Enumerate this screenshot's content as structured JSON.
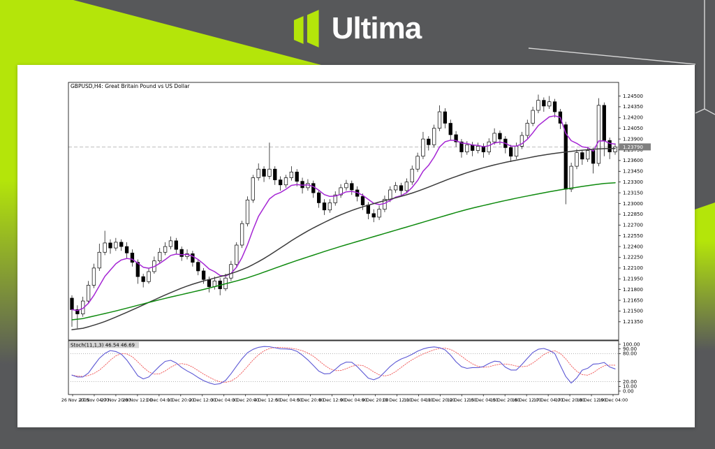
{
  "page": {
    "background_color": "#57585a",
    "accent_color": "#b4e50a",
    "chevron_line_color": "#d8d8d8"
  },
  "header": {
    "brand": "Ultima"
  },
  "chart": {
    "title": "GBPUSD,H4: Great Britain Pound vs US Dollar",
    "indicator_label": "Stoch(11,1,3)",
    "indicator_values": "46.54 46.69",
    "current_price": "1.23790"
  },
  "chart_data": {
    "type": "candlestick",
    "symbol": "GBPUSD",
    "timeframe": "H4",
    "title": "GBPUSD,H4: Great Britain Pound vs US Dollar",
    "grid": "off",
    "current_price": 1.2379,
    "price_axis": {
      "top_price": 1.2469,
      "bottom_price": 1.21095,
      "ticks": [
        "1.24500",
        "1.24350",
        "1.24200",
        "1.24050",
        "1.23900",
        "1.23750",
        "1.23600",
        "1.23450",
        "1.23300",
        "1.23150",
        "1.23000",
        "1.22850",
        "1.22700",
        "1.22550",
        "1.22400",
        "1.22250",
        "1.22100",
        "1.21950",
        "1.21800",
        "1.21650",
        "1.21500",
        "1.21350"
      ]
    },
    "x_labels": [
      "26 Nov 2025",
      "27 Nov 04:00",
      "27 Nov 20:00",
      "28 Nov 12:00",
      "1 Dec 04:00",
      "1 Dec 20:00",
      "2 Dec 12:00",
      "3 Dec 04:00",
      "3 Dec 20:00",
      "4 Dec 12:00",
      "5 Dec 04:00",
      "5 Dec 20:00",
      "8 Dec 12:00",
      "9 Dec 04:00",
      "9 Dec 20:00",
      "10 Dec 12:00",
      "11 Dec 04:00",
      "11 Dec 20:00",
      "12 Dec 12:00",
      "15 Dec 04:00",
      "15 Dec 20:00",
      "16 Dec 12:00",
      "17 Dec 04:00",
      "17 Dec 20:00",
      "18 Dec 12:00",
      "19 Dec 04:00"
    ],
    "candles": [
      [
        1.2168,
        1.2172,
        1.2128,
        1.2152
      ],
      [
        1.2152,
        1.2158,
        1.2126,
        1.2146
      ],
      [
        1.2146,
        1.217,
        1.2142,
        1.2164
      ],
      [
        1.2164,
        1.2192,
        1.216,
        1.2186
      ],
      [
        1.2186,
        1.2216,
        1.2182,
        1.221
      ],
      [
        1.221,
        1.2244,
        1.2206,
        1.2232
      ],
      [
        1.2232,
        1.2262,
        1.2228,
        1.2245
      ],
      [
        1.2245,
        1.225,
        1.223,
        1.2238
      ],
      [
        1.2238,
        1.2252,
        1.2234,
        1.2246
      ],
      [
        1.2246,
        1.225,
        1.2234,
        1.224
      ],
      [
        1.224,
        1.2246,
        1.2224,
        1.2231
      ],
      [
        1.2231,
        1.2236,
        1.2212,
        1.2218
      ],
      [
        1.2218,
        1.2222,
        1.2188,
        1.2198
      ],
      [
        1.2198,
        1.2202,
        1.2183,
        1.2191
      ],
      [
        1.2191,
        1.221,
        1.2188,
        1.2205
      ],
      [
        1.2205,
        1.2226,
        1.2202,
        1.222
      ],
      [
        1.222,
        1.2238,
        1.2216,
        1.2232
      ],
      [
        1.2232,
        1.2246,
        1.2228,
        1.224
      ],
      [
        1.224,
        1.2254,
        1.2236,
        1.2248
      ],
      [
        1.2248,
        1.2252,
        1.223,
        1.2236
      ],
      [
        1.2236,
        1.224,
        1.222,
        1.2226
      ],
      [
        1.2226,
        1.2236,
        1.2222,
        1.223
      ],
      [
        1.223,
        1.2234,
        1.2212,
        1.2218
      ],
      [
        1.2218,
        1.2222,
        1.22,
        1.2206
      ],
      [
        1.2206,
        1.221,
        1.2188,
        1.2194
      ],
      [
        1.2194,
        1.2198,
        1.2176,
        1.2184
      ],
      [
        1.2184,
        1.2198,
        1.218,
        1.2192
      ],
      [
        1.2192,
        1.2196,
        1.2172,
        1.2181
      ],
      [
        1.2181,
        1.2202,
        1.2178,
        1.2196
      ],
      [
        1.2196,
        1.222,
        1.2192,
        1.2215
      ],
      [
        1.2215,
        1.2246,
        1.2212,
        1.2242
      ],
      [
        1.2242,
        1.2276,
        1.2238,
        1.2272
      ],
      [
        1.2272,
        1.231,
        1.2268,
        1.2305
      ],
      [
        1.2305,
        1.234,
        1.2301,
        1.2336
      ],
      [
        1.2336,
        1.2356,
        1.2332,
        1.2348
      ],
      [
        1.2348,
        1.2352,
        1.233,
        1.2338
      ],
      [
        1.2338,
        1.2385,
        1.2334,
        1.2348
      ],
      [
        1.2348,
        1.2352,
        1.2326,
        1.2333
      ],
      [
        1.2333,
        1.2338,
        1.2318,
        1.2326
      ],
      [
        1.2326,
        1.234,
        1.2322,
        1.2336
      ],
      [
        1.2336,
        1.2352,
        1.2332,
        1.2344
      ],
      [
        1.2344,
        1.2348,
        1.2324,
        1.2331
      ],
      [
        1.2331,
        1.2336,
        1.2314,
        1.2322
      ],
      [
        1.2322,
        1.2334,
        1.2318,
        1.2328
      ],
      [
        1.2328,
        1.2332,
        1.2308,
        1.2315
      ],
      [
        1.2315,
        1.2319,
        1.2294,
        1.2301
      ],
      [
        1.2301,
        1.2306,
        1.2284,
        1.2291
      ],
      [
        1.2291,
        1.2306,
        1.2287,
        1.2301
      ],
      [
        1.2301,
        1.2317,
        1.2297,
        1.2312
      ],
      [
        1.2312,
        1.2327,
        1.2308,
        1.2322
      ],
      [
        1.2322,
        1.2333,
        1.2318,
        1.2328
      ],
      [
        1.2328,
        1.2332,
        1.2312,
        1.2319
      ],
      [
        1.2319,
        1.2324,
        1.2303,
        1.231
      ],
      [
        1.231,
        1.2314,
        1.2291,
        1.2298
      ],
      [
        1.2298,
        1.2302,
        1.2278,
        1.2286
      ],
      [
        1.2286,
        1.2292,
        1.2274,
        1.2281
      ],
      [
        1.2281,
        1.2297,
        1.2277,
        1.2292
      ],
      [
        1.2292,
        1.2311,
        1.2288,
        1.2306
      ],
      [
        1.2306,
        1.2324,
        1.2302,
        1.2319
      ],
      [
        1.2319,
        1.233,
        1.2315,
        1.2325
      ],
      [
        1.2325,
        1.2329,
        1.231,
        1.2318
      ],
      [
        1.2318,
        1.2335,
        1.2314,
        1.233
      ],
      [
        1.233,
        1.2353,
        1.2326,
        1.2348
      ],
      [
        1.2348,
        1.2371,
        1.2344,
        1.2366
      ],
      [
        1.2366,
        1.24,
        1.2362,
        1.239
      ],
      [
        1.239,
        1.2394,
        1.2374,
        1.2382
      ],
      [
        1.2382,
        1.241,
        1.2378,
        1.2405
      ],
      [
        1.2405,
        1.2437,
        1.2401,
        1.2428
      ],
      [
        1.2428,
        1.2433,
        1.2405,
        1.2412
      ],
      [
        1.2412,
        1.2417,
        1.2388,
        1.2396
      ],
      [
        1.2396,
        1.2401,
        1.2379,
        1.2386
      ],
      [
        1.2386,
        1.239,
        1.2364,
        1.2372
      ],
      [
        1.2372,
        1.2387,
        1.2368,
        1.2382
      ],
      [
        1.2382,
        1.2386,
        1.2366,
        1.2374
      ],
      [
        1.2374,
        1.2385,
        1.237,
        1.238
      ],
      [
        1.238,
        1.2384,
        1.2364,
        1.2372
      ],
      [
        1.2372,
        1.2391,
        1.2368,
        1.2386
      ],
      [
        1.2386,
        1.2405,
        1.2382,
        1.2398
      ],
      [
        1.2398,
        1.2402,
        1.2382,
        1.239
      ],
      [
        1.239,
        1.2394,
        1.237,
        1.2378
      ],
      [
        1.2378,
        1.2382,
        1.2358,
        1.2366
      ],
      [
        1.2366,
        1.2385,
        1.2362,
        1.238
      ],
      [
        1.238,
        1.24,
        1.2376,
        1.2395
      ],
      [
        1.2395,
        1.2417,
        1.2391,
        1.2412
      ],
      [
        1.2412,
        1.2435,
        1.2408,
        1.243
      ],
      [
        1.243,
        1.2452,
        1.2426,
        1.2444
      ],
      [
        1.2444,
        1.2448,
        1.2428,
        1.2436
      ],
      [
        1.2436,
        1.245,
        1.2432,
        1.2442
      ],
      [
        1.2442,
        1.2446,
        1.242,
        1.2428
      ],
      [
        1.2428,
        1.2432,
        1.2404,
        1.2412
      ],
      [
        1.241,
        1.2414,
        1.2299,
        1.232
      ],
      [
        1.232,
        1.2357,
        1.2316,
        1.2352
      ],
      [
        1.2352,
        1.2376,
        1.2348,
        1.2371
      ],
      [
        1.2371,
        1.2375,
        1.2354,
        1.2362
      ],
      [
        1.2362,
        1.2379,
        1.2358,
        1.2374
      ],
      [
        1.2374,
        1.2378,
        1.2342,
        1.2356
      ],
      [
        1.2356,
        1.2447,
        1.2352,
        1.2437
      ],
      [
        1.2437,
        1.2441,
        1.2366,
        1.2388
      ],
      [
        1.2388,
        1.2392,
        1.2362,
        1.2372
      ],
      [
        1.2372,
        1.2384,
        1.2368,
        1.2379
      ]
    ],
    "overlays": [
      {
        "name": "fast-ma-line",
        "type": "ema",
        "period": 8,
        "color": "#a526d4",
        "width": 1.5
      },
      {
        "name": "mid-ma-line",
        "type": "points",
        "color": "#3b3b3b",
        "width": 1.5,
        "points": [
          [
            0,
            1.2122
          ],
          [
            5,
            1.2132
          ],
          [
            10,
            1.2148
          ],
          [
            14,
            1.2162
          ],
          [
            18,
            1.2176
          ],
          [
            22,
            1.2188
          ],
          [
            26,
            1.2196
          ],
          [
            30,
            1.2204
          ],
          [
            34,
            1.2218
          ],
          [
            38,
            1.2238
          ],
          [
            42,
            1.2258
          ],
          [
            46,
            1.2274
          ],
          [
            50,
            1.2288
          ],
          [
            54,
            1.2298
          ],
          [
            58,
            1.2306
          ],
          [
            62,
            1.2314
          ],
          [
            66,
            1.2326
          ],
          [
            70,
            1.2338
          ],
          [
            74,
            1.2348
          ],
          [
            78,
            1.2356
          ],
          [
            82,
            1.2362
          ],
          [
            86,
            1.2368
          ],
          [
            90,
            1.2372
          ],
          [
            95,
            1.2376
          ],
          [
            99,
            1.2377
          ]
        ]
      },
      {
        "name": "slow-ma-line",
        "type": "points",
        "color": "#0e8a0e",
        "width": 1.5,
        "points": [
          [
            0,
            1.2136
          ],
          [
            8,
            1.215
          ],
          [
            16,
            1.2166
          ],
          [
            24,
            1.218
          ],
          [
            32,
            1.2196
          ],
          [
            40,
            1.2218
          ],
          [
            48,
            1.2238
          ],
          [
            56,
            1.2256
          ],
          [
            64,
            1.2274
          ],
          [
            72,
            1.2292
          ],
          [
            80,
            1.2306
          ],
          [
            88,
            1.2318
          ],
          [
            94,
            1.2325
          ],
          [
            99,
            1.233
          ]
        ]
      }
    ],
    "stochastic": {
      "label": "Stoch(11,1,3)",
      "k_last": 46.54,
      "d_last": 46.69,
      "k_color": "#5b57d4",
      "d_color": "#f05555",
      "levels": [
        80,
        20
      ],
      "axis_ticks": [
        {
          "v": 100,
          "label": "100.00"
        },
        {
          "v": 90,
          "label": "90.00"
        },
        {
          "v": 80,
          "label": "80.00"
        },
        {
          "v": 20,
          "label": "20.00"
        },
        {
          "v": 10,
          "label": "10.00"
        },
        {
          "v": 0,
          "label": "0.00"
        }
      ],
      "k_points": [
        [
          0,
          38
        ],
        [
          2,
          22
        ],
        [
          4,
          55
        ],
        [
          6,
          85
        ],
        [
          8,
          88
        ],
        [
          10,
          70
        ],
        [
          12,
          30
        ],
        [
          13,
          18
        ],
        [
          15,
          42
        ],
        [
          17,
          65
        ],
        [
          18,
          72
        ],
        [
          20,
          48
        ],
        [
          22,
          38
        ],
        [
          24,
          20
        ],
        [
          26,
          15
        ],
        [
          27,
          10
        ],
        [
          29,
          35
        ],
        [
          31,
          72
        ],
        [
          33,
          92
        ],
        [
          35,
          95
        ],
        [
          36,
          97
        ],
        [
          38,
          88
        ],
        [
          40,
          92
        ],
        [
          42,
          78
        ],
        [
          44,
          55
        ],
        [
          46,
          30
        ],
        [
          48,
          45
        ],
        [
          50,
          68
        ],
        [
          52,
          55
        ],
        [
          54,
          25
        ],
        [
          55,
          18
        ],
        [
          57,
          40
        ],
        [
          59,
          65
        ],
        [
          61,
          72
        ],
        [
          63,
          85
        ],
        [
          64,
          92
        ],
        [
          66,
          94
        ],
        [
          67,
          96
        ],
        [
          69,
          80
        ],
        [
          71,
          45
        ],
        [
          73,
          52
        ],
        [
          75,
          48
        ],
        [
          77,
          70
        ],
        [
          79,
          55
        ],
        [
          80,
          35
        ],
        [
          82,
          55
        ],
        [
          84,
          85
        ],
        [
          85,
          92
        ],
        [
          87,
          90
        ],
        [
          89,
          70
        ],
        [
          90,
          15
        ],
        [
          91,
          8
        ],
        [
          93,
          48
        ],
        [
          94,
          58
        ],
        [
          95,
          40
        ],
        [
          96,
          75
        ],
        [
          97,
          60
        ],
        [
          98,
          48
        ],
        [
          99,
          46.5
        ]
      ]
    }
  }
}
